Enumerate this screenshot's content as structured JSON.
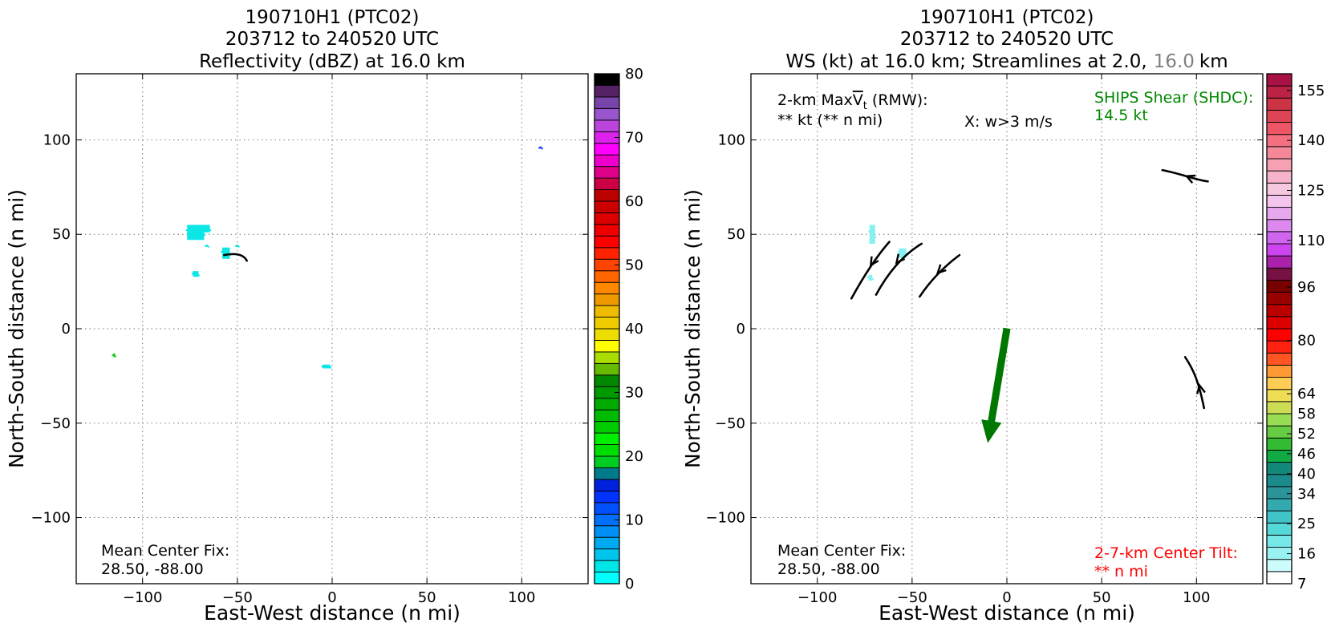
{
  "chart_data": [
    {
      "type": "heatmap",
      "title_lines": [
        "190710H1 (PTC02)",
        "203712 to 240520 UTC",
        "Reflectivity (dBZ) at 16.0 km"
      ],
      "xlabel": "East-West distance (n mi)",
      "ylabel": "North-South distance (n mi)",
      "xlim": [
        -135,
        135
      ],
      "ylim": [
        -135,
        135
      ],
      "xticks": [
        -100,
        -50,
        0,
        50,
        100
      ],
      "yticks": [
        -100,
        -50,
        0,
        50,
        100
      ],
      "x_tick_labels": [
        "−100",
        "−50",
        "0",
        "50",
        "100"
      ],
      "y_tick_labels": [
        "−100",
        "−50",
        "0",
        "50",
        "100"
      ],
      "grid": true,
      "annotations": {
        "center_fix_label": "Mean Center Fix:",
        "center_fix_value": "28.50, -88.00"
      },
      "echo_patches": [
        {
          "x": -72,
          "y": 51,
          "w": 9,
          "h": 8,
          "color": "#00e5e5"
        },
        {
          "x": -66,
          "y": 53,
          "w": 3,
          "h": 4,
          "color": "#00e5e5"
        },
        {
          "x": -72,
          "y": 29,
          "w": 3,
          "h": 3,
          "color": "#00e5e5"
        },
        {
          "x": -56,
          "y": 40,
          "w": 4,
          "h": 6,
          "color": "#00e5e5"
        },
        {
          "x": -50,
          "y": 44,
          "w": 1,
          "h": 1,
          "color": "#00e5e5"
        },
        {
          "x": -66,
          "y": 44,
          "w": 1,
          "h": 1,
          "color": "#00e5e5"
        },
        {
          "x": -3,
          "y": -20,
          "w": 4,
          "h": 2,
          "color": "#00e5e5"
        },
        {
          "x": -115,
          "y": -14,
          "w": 1,
          "h": 2,
          "color": "#19cc19"
        },
        {
          "x": 110,
          "y": 96,
          "w": 1,
          "h": 1,
          "color": "#0033ff"
        }
      ],
      "streamlines": [
        {
          "points": [
            [
              -57,
              39
            ],
            [
              -52,
              40
            ],
            [
              -47,
              40
            ],
            [
              -45,
              36
            ]
          ]
        }
      ],
      "colorbar": {
        "min": 0,
        "max": 80,
        "tick_values": [
          0,
          10,
          20,
          30,
          40,
          50,
          60,
          70,
          80
        ],
        "tick_labels": [
          "0",
          "10",
          "20",
          "30",
          "40",
          "50",
          "60",
          "70",
          "80"
        ],
        "colors": [
          "#00ffff",
          "#00e5e5",
          "#00c5ec",
          "#00aaf0",
          "#0090f4",
          "#0070f8",
          "#0050fc",
          "#0033ff",
          "#0022dd",
          "#007b8a",
          "#00cc22",
          "#00dd00",
          "#00ee00",
          "#00cc00",
          "#00bb00",
          "#00aa00",
          "#009900",
          "#008800",
          "#66bb00",
          "#aadd00",
          "#ffff00",
          "#eedd00",
          "#eecc00",
          "#eebb00",
          "#ee9900",
          "#ff8800",
          "#ff6600",
          "#ff4400",
          "#ff2200",
          "#ff0000",
          "#ee0000",
          "#dd0000",
          "#cc0000",
          "#bb0000",
          "#cc0044",
          "#dd0088",
          "#ee00cc",
          "#ff00ff",
          "#dd22ee",
          "#bb44dd",
          "#9955cc",
          "#7744aa",
          "#552266",
          "#000000"
        ]
      }
    },
    {
      "type": "heatmap",
      "title_lines": [
        "190710H1 (PTC02)",
        "203712 to 240520 UTC"
      ],
      "title_line3_parts": [
        "WS (kt) at 16.0 km; Streamlines at 2.0,",
        "16.0",
        "km"
      ],
      "title_line3_colors": [
        "#000000",
        "#808080",
        "#000000"
      ],
      "xlabel": "East-West distance (n mi)",
      "ylabel": "North-South distance (n mi)",
      "xlim": [
        -135,
        135
      ],
      "ylim": [
        -135,
        135
      ],
      "xticks": [
        -100,
        -50,
        0,
        50,
        100
      ],
      "yticks": [
        -100,
        -50,
        0,
        50,
        100
      ],
      "x_tick_labels": [
        "−100",
        "−50",
        "0",
        "50",
        "100"
      ],
      "y_tick_labels": [
        "−100",
        "−50",
        "0",
        "50",
        "100"
      ],
      "grid": true,
      "annotations": {
        "maxvt_label_pre": "2-km Max",
        "maxvt_symbol": "V",
        "maxvt_sub": "t",
        "maxvt_label_post": " (RMW):",
        "maxvt_value": "** kt (** n mi)",
        "w_marker_label": "X: w>3 m/s",
        "ships_label": "SHIPS Shear (SHDC):",
        "ships_value": "14.5 kt",
        "ships_color": "#008800",
        "center_fix_label": "Mean Center Fix:",
        "center_fix_value": "28.50, -88.00",
        "tilt_label": "2-7-km Center Tilt:",
        "tilt_value": "** n mi",
        "tilt_color": "#ff0000"
      },
      "shear_vector": {
        "from": [
          0,
          0
        ],
        "to": [
          -10,
          -60
        ],
        "color": "#007700"
      },
      "echo_patches": [
        {
          "x": -71,
          "y": 50,
          "w": 3,
          "h": 10,
          "color": "#80f0f0"
        },
        {
          "x": -72,
          "y": 27,
          "w": 2,
          "h": 3,
          "color": "#80f0f0"
        },
        {
          "x": -55,
          "y": 40,
          "w": 4,
          "h": 5,
          "color": "#80f0f0"
        }
      ],
      "streamlines": [
        {
          "points": [
            [
              -82,
              16
            ],
            [
              -76,
              27
            ],
            [
              -69,
              38
            ],
            [
              -62,
              46
            ]
          ],
          "arrow_index": 1.6
        },
        {
          "points": [
            [
              -69,
              18
            ],
            [
              -63,
              29
            ],
            [
              -55,
              39
            ],
            [
              -45,
              45
            ]
          ],
          "arrow_index": 1.6
        },
        {
          "points": [
            [
              -46,
              17
            ],
            [
              -40,
              26
            ],
            [
              -33,
              33
            ],
            [
              -25,
              39
            ]
          ],
          "arrow_index": 1.5
        },
        {
          "points": [
            [
              82,
              84
            ],
            [
              92,
              82
            ],
            [
              99,
              79
            ],
            [
              106,
              78
            ]
          ],
          "arrow_index": 1.4
        },
        {
          "points": [
            [
              94,
              -15
            ],
            [
              98,
              -21
            ],
            [
              101,
              -27
            ],
            [
              104,
              -42
            ]
          ],
          "arrow_index": 2.2
        }
      ],
      "colorbar": {
        "min": 7,
        "max": 160,
        "tick_values": [
          7,
          16,
          25,
          34,
          40,
          46,
          52,
          58,
          64,
          80,
          96,
          110,
          125,
          140,
          155
        ],
        "tick_labels": [
          "7",
          "16",
          "25",
          "34",
          "40",
          "46",
          "52",
          "58",
          "64",
          "80",
          "96",
          "110",
          "125",
          "140",
          "155"
        ],
        "colors": [
          "#ffffff",
          "#ccfcfc",
          "#99f2f2",
          "#77e8e8",
          "#55d8d8",
          "#40c4c8",
          "#33aab0",
          "#2b9498",
          "#1a8a8a",
          "#11887a",
          "#11aa44",
          "#33bb33",
          "#66cc44",
          "#99dd55",
          "#ccdd55",
          "#eedd55",
          "#ffcc55",
          "#ff9933",
          "#ff5522",
          "#ff2211",
          "#ff0000",
          "#dd0000",
          "#bb0000",
          "#990000",
          "#770000",
          "#771144",
          "#aa22aa",
          "#cc44ee",
          "#d066f0",
          "#dd88ee",
          "#e8a8ee",
          "#f2c4ee",
          "#f6c8e0",
          "#f6b4cc",
          "#f6a0b4",
          "#f58898",
          "#f47080",
          "#ee5566",
          "#dd4455",
          "#cc3344",
          "#bb2244",
          "#aa1144"
        ]
      }
    }
  ]
}
